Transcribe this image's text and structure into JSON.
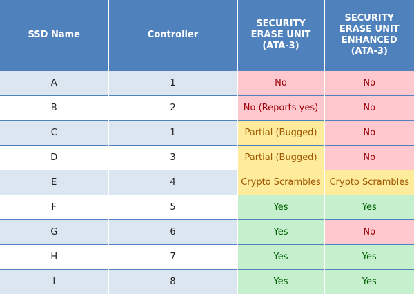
{
  "headers": {
    "name": "SSD Name",
    "controller": "Controller",
    "seu": [
      "SECURITY",
      "ERASE UNIT",
      "(ATA-3)"
    ],
    "seue": [
      "SECURITY",
      "ERASE UNIT",
      "ENHANCED",
      "(ATA-3)"
    ]
  },
  "status_colors": {
    "no_bg": "#ffc7ce",
    "yes_bg": "#c6efce",
    "partial_bg": "#ffeb9c",
    "header_bg": "#4f81bd"
  },
  "rows": [
    {
      "name": "A",
      "controller": "1",
      "seu": "No",
      "seu_status": "no",
      "seue": "No",
      "seue_status": "no"
    },
    {
      "name": "B",
      "controller": "2",
      "seu": "No (Reports yes)",
      "seu_status": "no",
      "seue": "No",
      "seue_status": "no"
    },
    {
      "name": "C",
      "controller": "1",
      "seu": "Partial (Bugged)",
      "seu_status": "partial",
      "seue": "No",
      "seue_status": "no"
    },
    {
      "name": "D",
      "controller": "3",
      "seu": "Partial (Bugged)",
      "seu_status": "partial",
      "seue": "No",
      "seue_status": "no"
    },
    {
      "name": "E",
      "controller": "4",
      "seu": "Crypto Scrambles",
      "seu_status": "partial",
      "seue": "Crypto Scrambles",
      "seue_status": "partial"
    },
    {
      "name": "F",
      "controller": "5",
      "seu": "Yes",
      "seu_status": "yes",
      "seue": "Yes",
      "seue_status": "yes"
    },
    {
      "name": "G",
      "controller": "6",
      "seu": "Yes",
      "seu_status": "yes",
      "seue": "No",
      "seue_status": "no"
    },
    {
      "name": "H",
      "controller": "7",
      "seu": "Yes",
      "seu_status": "yes",
      "seue": "Yes",
      "seue_status": "yes"
    },
    {
      "name": "I",
      "controller": "8",
      "seu": "Yes",
      "seu_status": "yes",
      "seue": "Yes",
      "seue_status": "yes"
    }
  ]
}
